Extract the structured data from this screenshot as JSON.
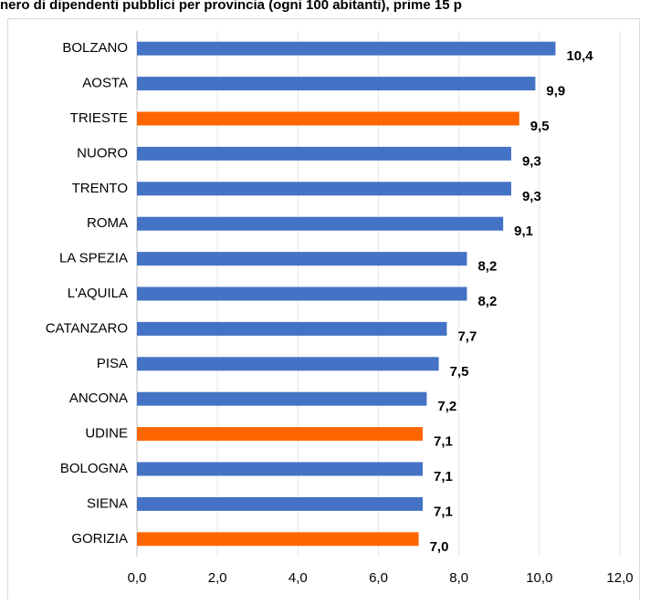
{
  "chart_data": {
    "type": "barh",
    "title": "nero di dipendenti pubblici per provincia (ogni 100 abitanti), prime 15 p",
    "categories": [
      "BOLZANO",
      "AOSTA",
      "TRIESTE",
      "NUORO",
      "TRENTO",
      "ROMA",
      "LA SPEZIA",
      "L'AQUILA",
      "CATANZARO",
      "PISA",
      "ANCONA",
      "UDINE",
      "BOLOGNA",
      "SIENA",
      "GORIZIA"
    ],
    "values": [
      10.4,
      9.9,
      9.5,
      9.3,
      9.3,
      9.1,
      8.2,
      8.2,
      7.7,
      7.5,
      7.2,
      7.1,
      7.1,
      7.1,
      7.0
    ],
    "value_labels": [
      "10,4",
      "9,9",
      "9,5",
      "9,3",
      "9,3",
      "9,1",
      "8,2",
      "8,2",
      "7,7",
      "7,5",
      "7,2",
      "7,1",
      "7,1",
      "7,1",
      "7,0"
    ],
    "colors": [
      "#4472c4",
      "#4472c4",
      "#ff6600",
      "#4472c4",
      "#4472c4",
      "#4472c4",
      "#4472c4",
      "#4472c4",
      "#4472c4",
      "#4472c4",
      "#4472c4",
      "#ff6600",
      "#4472c4",
      "#4472c4",
      "#ff6600"
    ],
    "xlim": [
      0,
      12
    ],
    "xticks": [
      {
        "value": 0,
        "label": "0,0"
      },
      {
        "value": 2,
        "label": "2,0"
      },
      {
        "value": 4,
        "label": "4,0"
      },
      {
        "value": 6,
        "label": "6,0"
      },
      {
        "value": 8,
        "label": "8,0"
      },
      {
        "value": 10,
        "label": "10,0"
      },
      {
        "value": 12,
        "label": "12,0"
      }
    ],
    "grid": true
  }
}
